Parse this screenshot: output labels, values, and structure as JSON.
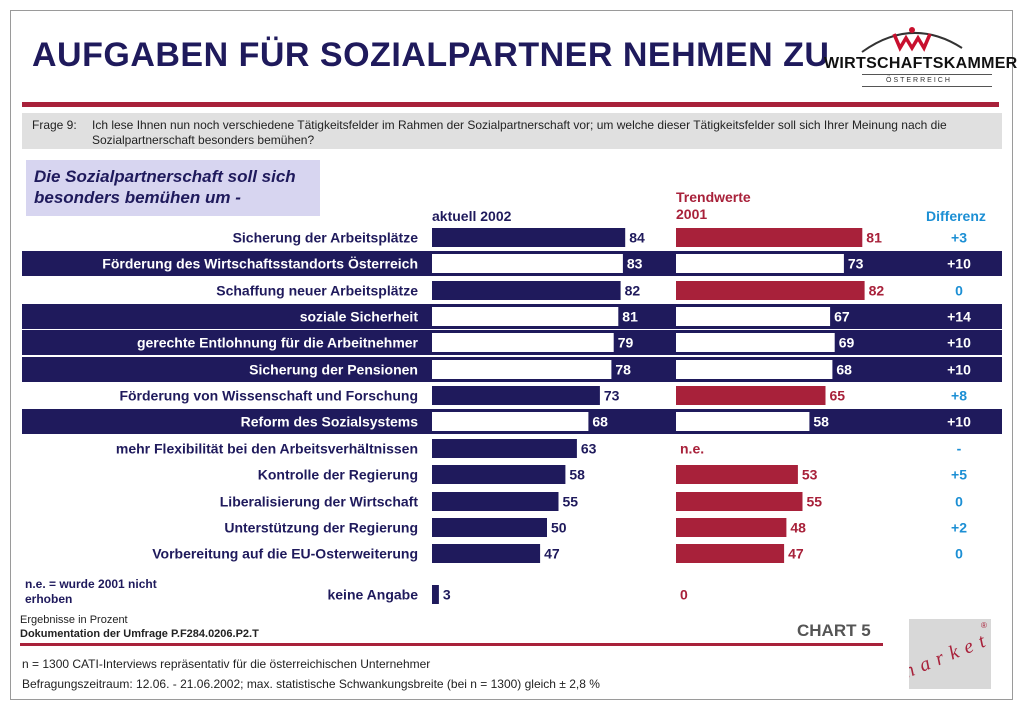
{
  "title": "AUFGABEN FÜR SOZIALPARTNER NEHMEN ZU",
  "logo": {
    "name": "WIRTSCHAFTSKAMMER",
    "sub": "ÖSTERREICH"
  },
  "question": {
    "label": "Frage 9:",
    "text": "Ich lese Ihnen nun noch verschiedene Tätigkeitsfelder im Rahmen der Sozialpartnerschaft vor; um welche dieser Tätigkeitsfelder soll sich Ihrer Meinung nach die Sozialpartnerschaft besonders bemühen?"
  },
  "subtitle": "Die Sozialpartnerschaft soll sich besonders bemühen um -",
  "columns": {
    "actual": "aktuell 2002",
    "trend_line1": "Trendwerte",
    "trend_line2": "2001",
    "diff": "Differenz"
  },
  "legend_note": "n.e. = wurde 2001 nicht erhoben",
  "chart_data": {
    "type": "bar",
    "orientation": "horizontal",
    "xlim": [
      0,
      100
    ],
    "categories": [
      "Sicherung der Arbeitsplätze",
      "Förderung des Wirtschaftsstandorts Österreich",
      "Schaffung neuer Arbeitsplätze",
      "soziale Sicherheit",
      "gerechte Entlohnung für die Arbeitnehmer",
      "Sicherung der Pensionen",
      "Förderung von Wissenschaft und Forschung",
      "Reform des Sozialsystems",
      "mehr Flexibilität bei den Arbeitsverhältnissen",
      "Kontrolle der Regierung",
      "Liberalisierung der Wirtschaft",
      "Unterstützung der Regierung",
      "Vorbereitung auf die EU-Osterweiterung",
      "keine Angabe"
    ],
    "highlighted": [
      false,
      true,
      false,
      true,
      true,
      true,
      false,
      true,
      false,
      false,
      false,
      false,
      false,
      false
    ],
    "series": [
      {
        "name": "aktuell 2002",
        "values": [
          84,
          83,
          82,
          81,
          79,
          78,
          73,
          68,
          63,
          58,
          55,
          50,
          47,
          3
        ]
      },
      {
        "name": "Trendwerte 2001",
        "values": [
          81,
          73,
          82,
          67,
          69,
          68,
          65,
          58,
          null,
          53,
          55,
          48,
          47,
          0
        ]
      }
    ],
    "trend_labels": [
      "81",
      "73",
      "82",
      "67",
      "69",
      "68",
      "65",
      "58",
      "n.e.",
      "53",
      "55",
      "48",
      "47",
      "0"
    ],
    "differences": [
      "+3",
      "+10",
      "0",
      "+14",
      "+10",
      "+10",
      "+8",
      "+10",
      "-",
      "+5",
      "0",
      "+2",
      "0",
      ""
    ],
    "colors": {
      "actual": "#1f1a5c",
      "trend": "#a8213a",
      "diff": "#1c8fd4",
      "highlight_bg": "#1f1a5c",
      "highlight_bar": "#ffffff"
    }
  },
  "chart_label": "CHART 5",
  "footer": {
    "unit": "Ergebnisse in Prozent",
    "doc": "Dokumentation der Umfrage P.F284.0206.P2.T",
    "sample": "n = 1300 CATI-Interviews repräsentativ für die österreichischen Unternehmer",
    "period": "Befragungszeitraum: 12.06. - 21.06.2002; max. statistische Schwankungsbreite (bei n = 1300) gleich ± 2,8 %"
  },
  "market_logo": "market"
}
